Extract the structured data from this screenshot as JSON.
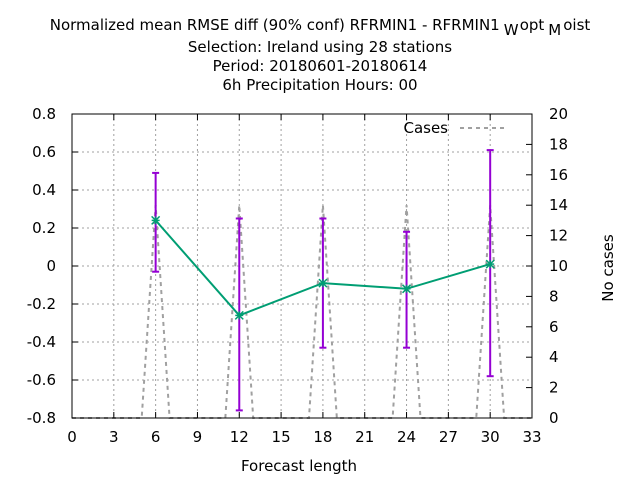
{
  "chart_data": {
    "type": "line",
    "title_lines": [
      "Normalized mean RMSE diff (90% conf) RFRMIN1 - RFRMIN1",
      "Selection: Ireland using    28 stations",
      "Period: 20180601-20180614",
      "6h Precipitation   Hours:  00"
    ],
    "title_suffix": [
      {
        "text": "W",
        "sub": true
      },
      {
        "text": "opt",
        "sub": false
      },
      {
        "text": "M",
        "sub": true
      },
      {
        "text": "oist",
        "sub": false
      }
    ],
    "xlabel": "Forecast length",
    "ylabel": "",
    "y2label": "No cases",
    "xlim": [
      0,
      33
    ],
    "ylim": [
      -0.8,
      0.8
    ],
    "y2lim": [
      0,
      20
    ],
    "xticks": [
      0,
      3,
      6,
      9,
      12,
      15,
      18,
      21,
      24,
      27,
      30,
      33
    ],
    "yticks": [
      -0.8,
      -0.6,
      -0.4,
      -0.2,
      0,
      0.2,
      0.4,
      0.6,
      0.8
    ],
    "ytick_labels": [
      "-0.8",
      "-0.6",
      "-0.4",
      "-0.2",
      "0",
      "0.2",
      "0.4",
      "0.6",
      "0.8"
    ],
    "y2ticks": [
      0,
      2,
      4,
      6,
      8,
      10,
      12,
      14,
      16,
      18,
      20
    ],
    "grid": true,
    "legend_position": "top-right",
    "series": [
      {
        "name": "",
        "color": "#009e73",
        "marker": "asterisk",
        "x": [
          6,
          12,
          18,
          24,
          30
        ],
        "y": [
          0.24,
          -0.26,
          -0.09,
          -0.12,
          0.01
        ],
        "err_low": [
          -0.03,
          -0.76,
          -0.43,
          -0.43,
          -0.58
        ],
        "err_high": [
          0.49,
          0.25,
          0.25,
          0.18,
          0.61
        ],
        "err_color": "#9400d3"
      },
      {
        "name": "Cases",
        "color": "#a0a0a0",
        "style": "dashed",
        "axis": "y2",
        "x": [
          0,
          5,
          6,
          7,
          11,
          12,
          13,
          17,
          18,
          19,
          23,
          24,
          25,
          29,
          30,
          31,
          33
        ],
        "y": [
          0,
          0,
          14,
          0,
          0,
          14,
          0,
          0,
          14,
          0,
          0,
          14,
          0,
          0,
          14,
          0,
          0
        ]
      }
    ]
  }
}
